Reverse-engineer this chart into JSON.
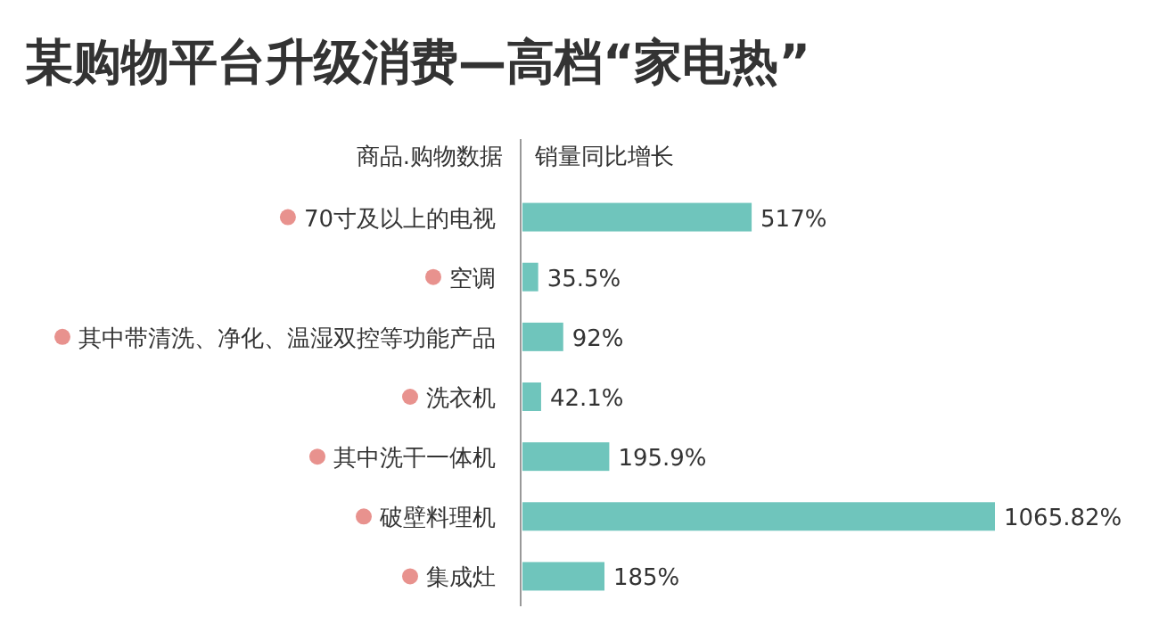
{
  "chart_data": {
    "type": "bar",
    "orientation": "horizontal",
    "title": "某购物平台升级消费—高档“家电热”",
    "ylabel": "商品.购物数据",
    "xlabel": "销量同比增长",
    "categories": [
      "70寸及以上的电视",
      "空调",
      "其中带清洗、净化、温湿双控等功能产品",
      "洗衣机",
      "其中洗干一体机",
      "破壁料理机",
      "集成灶"
    ],
    "values": [
      517,
      35.5,
      92,
      42.1,
      195.9,
      1065.82,
      185
    ],
    "value_labels": [
      "517%",
      "35.5%",
      "92%",
      "42.1%",
      "195.9%",
      "1065.82%",
      "185%"
    ],
    "color": "#6fc5bc"
  }
}
